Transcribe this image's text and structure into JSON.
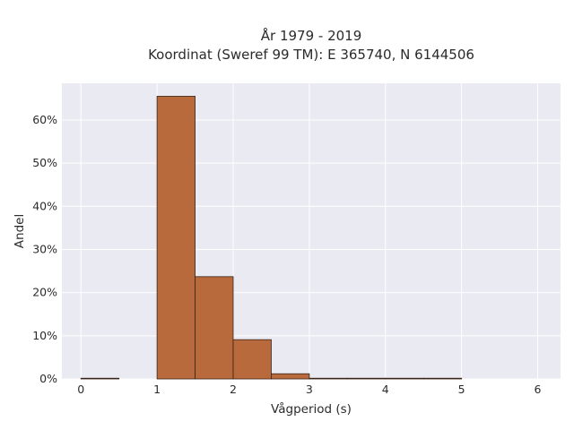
{
  "chart_data": {
    "type": "bar",
    "title_lines": [
      "År 1979 - 2019",
      "Koordinat (Sweref 99 TM): E 365740, N 6144506"
    ],
    "xlabel": "Vågperiod (s)",
    "ylabel": "Andel",
    "xlim": [
      -0.25,
      6.3
    ],
    "ylim": [
      0,
      0.685
    ],
    "xticks": [
      0,
      1,
      2,
      3,
      4,
      5,
      6
    ],
    "yticks": [
      0,
      0.1,
      0.2,
      0.3,
      0.4,
      0.5,
      0.6
    ],
    "ytick_labels": [
      "0%",
      "10%",
      "20%",
      "30%",
      "40%",
      "50%",
      "60%"
    ],
    "bins": [
      {
        "x0": 0.0,
        "x1": 0.5,
        "value": 0.001
      },
      {
        "x0": 0.5,
        "x1": 1.0,
        "value": 0.0
      },
      {
        "x0": 1.0,
        "x1": 1.5,
        "value": 0.655
      },
      {
        "x0": 1.5,
        "x1": 2.0,
        "value": 0.237
      },
      {
        "x0": 2.0,
        "x1": 2.5,
        "value": 0.091
      },
      {
        "x0": 2.5,
        "x1": 3.0,
        "value": 0.012
      },
      {
        "x0": 3.0,
        "x1": 3.5,
        "value": 0.001
      },
      {
        "x0": 3.5,
        "x1": 4.0,
        "value": 0.001
      },
      {
        "x0": 4.0,
        "x1": 4.5,
        "value": 0.001
      },
      {
        "x0": 4.5,
        "x1": 5.0,
        "value": 0.001
      }
    ],
    "grid": true,
    "colors": {
      "bar_fill": "#b86a3c",
      "bar_edge": "#3a2418",
      "plot_bg": "#eaeaf2",
      "grid": "#ffffff"
    }
  }
}
